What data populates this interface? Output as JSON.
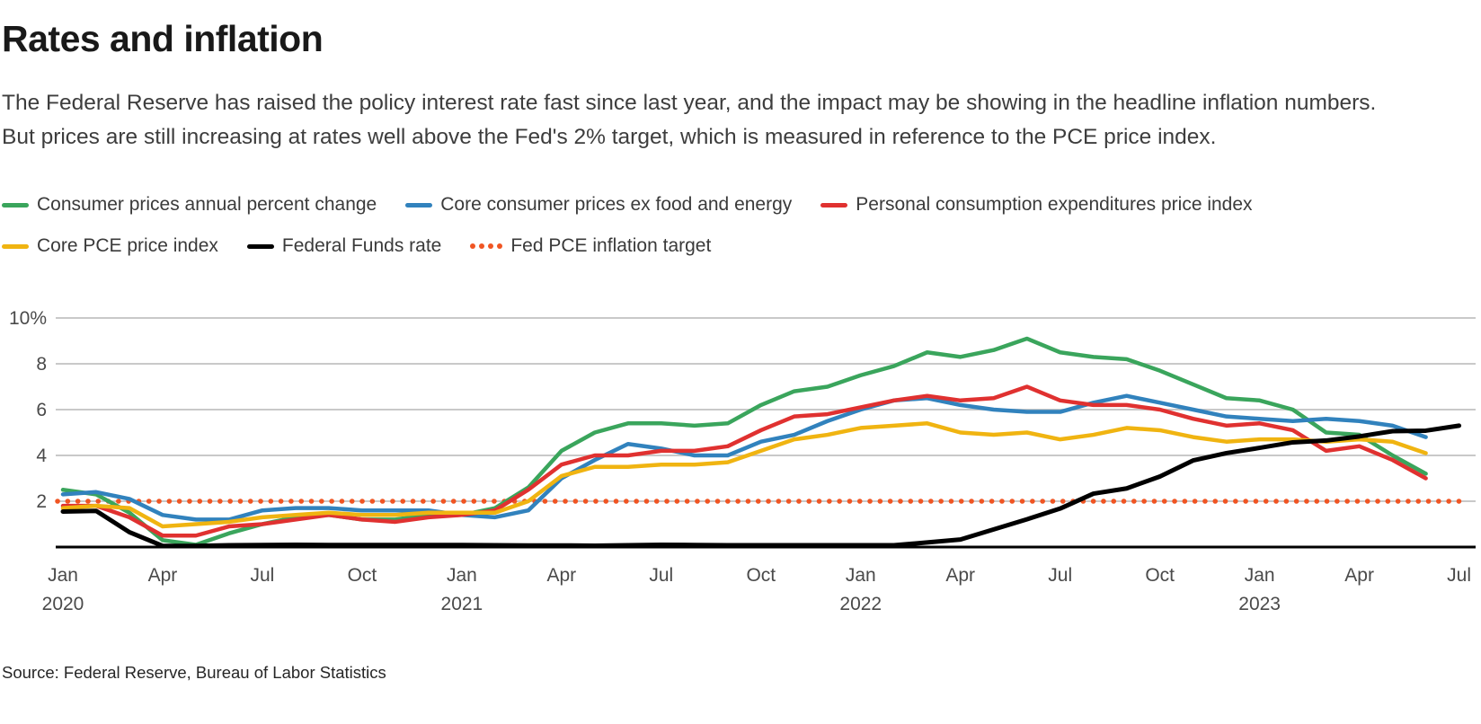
{
  "header": {
    "title": "Rates and inflation",
    "description": "The Federal Reserve has raised the policy interest rate fast since last year, and the impact may be showing in the headline inflation numbers. But prices are still increasing at rates well above the Fed's 2% target, which is measured in reference to the PCE price index."
  },
  "source": "Source: Federal Reserve, Bureau of Labor Statistics",
  "chart_data": {
    "type": "line",
    "x_unit": "monthly",
    "x_range": [
      "Jan 2020",
      "Jul 2023"
    ],
    "ylim": [
      0,
      10
    ],
    "grid": "horizontal",
    "legend_position": "top",
    "gridline_color": "#c9c9c9",
    "axis_line_color": "#000000",
    "axis_text_color": "#4a4a4a",
    "y_ticks": [
      {
        "value": 10,
        "label": "10%"
      },
      {
        "value": 8,
        "label": "8"
      },
      {
        "value": 6,
        "label": "6"
      },
      {
        "value": 4,
        "label": "4"
      },
      {
        "value": 2,
        "label": "2"
      }
    ],
    "x_ticks": [
      {
        "index": 0,
        "label": "Jan",
        "year": "2020"
      },
      {
        "index": 3,
        "label": "Apr"
      },
      {
        "index": 6,
        "label": "Jul"
      },
      {
        "index": 9,
        "label": "Oct"
      },
      {
        "index": 12,
        "label": "Jan",
        "year": "2021"
      },
      {
        "index": 15,
        "label": "Apr"
      },
      {
        "index": 18,
        "label": "Jul"
      },
      {
        "index": 21,
        "label": "Oct"
      },
      {
        "index": 24,
        "label": "Jan",
        "year": "2022"
      },
      {
        "index": 27,
        "label": "Apr"
      },
      {
        "index": 30,
        "label": "Jul"
      },
      {
        "index": 33,
        "label": "Oct"
      },
      {
        "index": 36,
        "label": "Jan",
        "year": "2023"
      },
      {
        "index": 39,
        "label": "Apr"
      },
      {
        "index": 42,
        "label": "Jul"
      }
    ],
    "series": [
      {
        "id": "cpi",
        "name": "Consumer prices annual percent change",
        "color": "#3aa55c",
        "values": [
          2.5,
          2.3,
          1.5,
          0.3,
          0.1,
          0.6,
          1.0,
          1.3,
          1.4,
          1.2,
          1.2,
          1.4,
          1.4,
          1.7,
          2.6,
          4.2,
          5.0,
          5.4,
          5.4,
          5.3,
          5.4,
          6.2,
          6.8,
          7.0,
          7.5,
          7.9,
          8.5,
          8.3,
          8.6,
          9.1,
          8.5,
          8.3,
          8.2,
          7.7,
          7.1,
          6.5,
          6.4,
          6.0,
          5.0,
          4.9,
          4.0,
          3.2
        ]
      },
      {
        "id": "core-cpi",
        "name": "Core consumer prices ex food and energy",
        "color": "#3182bd",
        "values": [
          2.3,
          2.4,
          2.1,
          1.4,
          1.2,
          1.2,
          1.6,
          1.7,
          1.7,
          1.6,
          1.6,
          1.6,
          1.4,
          1.3,
          1.6,
          3.0,
          3.8,
          4.5,
          4.3,
          4.0,
          4.0,
          4.6,
          4.9,
          5.5,
          6.0,
          6.4,
          6.5,
          6.2,
          6.0,
          5.9,
          5.9,
          6.3,
          6.6,
          6.3,
          6.0,
          5.7,
          5.6,
          5.5,
          5.6,
          5.5,
          5.3,
          4.8
        ]
      },
      {
        "id": "pce",
        "name": "Personal consumption expenditures price index",
        "color": "#e03130",
        "values": [
          1.8,
          1.8,
          1.3,
          0.5,
          0.5,
          0.9,
          1.0,
          1.2,
          1.4,
          1.2,
          1.1,
          1.3,
          1.4,
          1.6,
          2.5,
          3.6,
          4.0,
          4.0,
          4.2,
          4.2,
          4.4,
          5.1,
          5.7,
          5.8,
          6.1,
          6.4,
          6.6,
          6.4,
          6.5,
          7.0,
          6.4,
          6.2,
          6.2,
          6.0,
          5.6,
          5.3,
          5.4,
          5.1,
          4.2,
          4.4,
          3.8,
          3.0
        ]
      },
      {
        "id": "core-pce",
        "name": "Core PCE price index",
        "color": "#f0b411",
        "values": [
          1.7,
          1.8,
          1.7,
          0.9,
          1.0,
          1.1,
          1.3,
          1.4,
          1.5,
          1.4,
          1.4,
          1.5,
          1.5,
          1.5,
          2.0,
          3.1,
          3.5,
          3.5,
          3.6,
          3.6,
          3.7,
          4.2,
          4.7,
          4.9,
          5.2,
          5.3,
          5.4,
          5.0,
          4.9,
          5.0,
          4.7,
          4.9,
          5.2,
          5.1,
          4.8,
          4.6,
          4.7,
          4.7,
          4.6,
          4.7,
          4.6,
          4.1
        ]
      },
      {
        "id": "fed-funds",
        "name": "Federal Funds rate",
        "color": "#000000",
        "values": [
          1.55,
          1.58,
          0.65,
          0.05,
          0.05,
          0.08,
          0.09,
          0.1,
          0.09,
          0.09,
          0.09,
          0.09,
          0.09,
          0.08,
          0.07,
          0.07,
          0.06,
          0.08,
          0.1,
          0.09,
          0.08,
          0.08,
          0.08,
          0.08,
          0.08,
          0.08,
          0.2,
          0.33,
          0.77,
          1.21,
          1.68,
          2.33,
          2.56,
          3.08,
          3.78,
          4.1,
          4.33,
          4.57,
          4.65,
          4.83,
          5.06,
          5.08,
          5.3
        ]
      }
    ],
    "target_line": {
      "id": "fed-target",
      "name": "Fed PCE inflation target",
      "value": 2,
      "color": "#f05523",
      "style": "dotted"
    }
  }
}
